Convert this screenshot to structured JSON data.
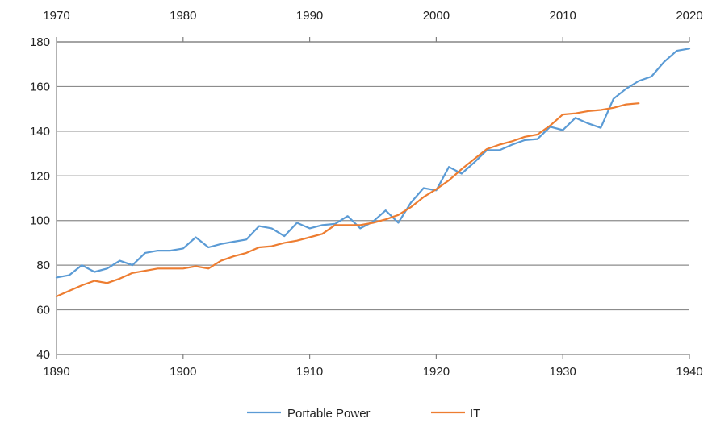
{
  "chart_data": {
    "type": "line",
    "title": "",
    "xlabel": "",
    "ylabel": "",
    "x_bottom": {
      "range": [
        1890,
        1940
      ],
      "ticks": [
        "1890",
        "1900",
        "1910",
        "1920",
        "1930",
        "1940"
      ]
    },
    "x_top": {
      "range": [
        1970,
        2020
      ],
      "ticks": [
        "1970",
        "1980",
        "1990",
        "2000",
        "2010",
        "2020"
      ]
    },
    "ylim": [
      40,
      180
    ],
    "y_ticks": [
      "40",
      "60",
      "80",
      "100",
      "120",
      "140",
      "160",
      "180"
    ],
    "grid": "horizontal",
    "legend": "bottom",
    "series": [
      {
        "name": "Portable Power",
        "color": "#5B9BD5",
        "x": [
          1890,
          1891,
          1892,
          1893,
          1894,
          1895,
          1896,
          1897,
          1898,
          1899,
          1900,
          1901,
          1902,
          1903,
          1904,
          1905,
          1906,
          1907,
          1908,
          1909,
          1910,
          1911,
          1912,
          1913,
          1914,
          1915,
          1916,
          1917,
          1918,
          1919,
          1920,
          1921,
          1922,
          1923,
          1924,
          1925,
          1926,
          1927,
          1928,
          1929,
          1930,
          1931,
          1932,
          1933,
          1934,
          1935,
          1936,
          1937,
          1938,
          1939,
          1940
        ],
        "values": [
          74.5,
          75.5,
          80,
          77,
          78.5,
          82,
          80,
          85.5,
          86.5,
          86.5,
          87.5,
          92.5,
          88,
          89.5,
          90.5,
          91.5,
          97.5,
          96.5,
          93,
          99,
          96.5,
          98,
          98.5,
          102,
          96.5,
          99.5,
          104.5,
          99,
          108,
          114.5,
          113.5,
          124,
          121,
          126,
          131.5,
          131.5,
          134,
          136,
          136.5,
          142,
          140.5,
          146,
          143.5,
          141.5,
          154.5,
          159,
          162.5,
          164.5,
          171,
          176,
          177
        ]
      },
      {
        "name": "IT",
        "color": "#ED7D31",
        "x": [
          1890,
          1891,
          1892,
          1893,
          1894,
          1895,
          1896,
          1897,
          1898,
          1899,
          1900,
          1901,
          1902,
          1903,
          1904,
          1905,
          1906,
          1907,
          1908,
          1909,
          1910,
          1911,
          1912,
          1913,
          1914,
          1915,
          1916,
          1917,
          1918,
          1919,
          1920,
          1921,
          1922,
          1923,
          1924,
          1925,
          1926,
          1927,
          1928,
          1929,
          1930,
          1931,
          1932,
          1933,
          1934,
          1935,
          1936
        ],
        "values": [
          66,
          68.5,
          71,
          73,
          72,
          74,
          76.5,
          77.5,
          78.5,
          78.5,
          78.5,
          79.5,
          78.5,
          82,
          84,
          85.5,
          88,
          88.5,
          90,
          91,
          92.5,
          94,
          98,
          98,
          98,
          99,
          100.5,
          102.5,
          106,
          110.5,
          114,
          118,
          123,
          127.5,
          132,
          134,
          135.5,
          137.5,
          138.5,
          142.5,
          147.5,
          148,
          149,
          149.5,
          150.5,
          152,
          152.5
        ]
      }
    ]
  }
}
